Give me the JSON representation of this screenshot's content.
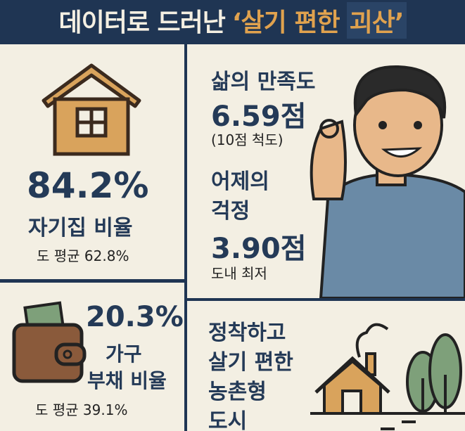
{
  "header": {
    "title_white": "데이터로 드러난",
    "title_accent": "‘살기 편한",
    "title_box": "괴산’"
  },
  "home": {
    "value": "84.2%",
    "label": "자기집 비율",
    "avg": "도 평균 62.8%",
    "icon": "house-icon"
  },
  "debt": {
    "value": "20.3%",
    "label1": "가구",
    "label2": "부채 비율",
    "avg": "도 평균 39.1%",
    "icon": "wallet-icon"
  },
  "life": {
    "title": "삶의 만족도",
    "value": "6.59점",
    "scale": "(10점 척도)",
    "icon": "person-ok-gesture"
  },
  "worry": {
    "title1": "어제의",
    "title2": "걱정",
    "value": "3.90점",
    "note": "도내 최저"
  },
  "rural": {
    "lines": [
      "정착하고",
      "살기 편한",
      "농촌형",
      "도시"
    ],
    "icon": "rural-house-trees-icon"
  },
  "colors": {
    "navy": "#1f3553",
    "cream": "#f3efe3",
    "accent": "#e0a24e"
  }
}
